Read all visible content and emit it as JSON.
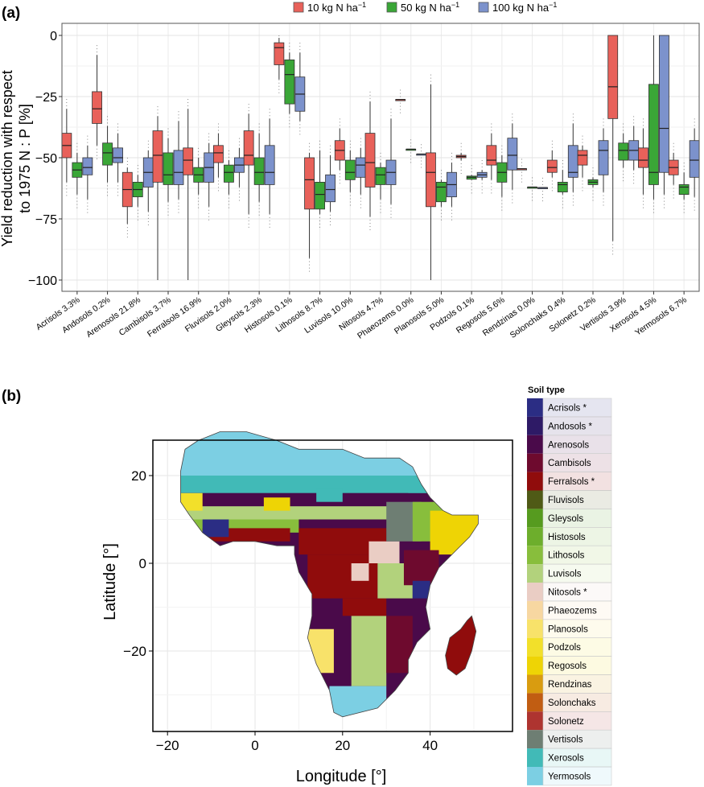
{
  "panel_a": {
    "tag": "(a)",
    "legend": [
      {
        "label": "10 kg N ha",
        "sup": "−1",
        "color": "#E8615A"
      },
      {
        "label": "50 kg N ha",
        "sup": "−1",
        "color": "#3AA637"
      },
      {
        "label": "100 kg N ha",
        "sup": "−1",
        "color": "#7C92CC"
      }
    ],
    "ylabel_line1": "Yield reduction with respect",
    "ylabel_line2": "to 1975 N : P [%]"
  },
  "panel_b": {
    "tag": "(b)",
    "legend_title": "Soil type",
    "soil_types": [
      {
        "label": "Acrisols *",
        "color": "#2B2D84"
      },
      {
        "label": "Andosols *",
        "color": "#2E1A66"
      },
      {
        "label": "Arenosols",
        "color": "#4A0A4A"
      },
      {
        "label": "Cambisols",
        "color": "#6E0A2E"
      },
      {
        "label": "Ferralsols *",
        "color": "#900C0C"
      },
      {
        "label": "Fluvisols",
        "color": "#4F5A16"
      },
      {
        "label": "Gleysols",
        "color": "#569B1F"
      },
      {
        "label": "Histosols",
        "color": "#6DAE2C"
      },
      {
        "label": "Lithosols",
        "color": "#88BE3C"
      },
      {
        "label": "Luvisols",
        "color": "#B2D27C"
      },
      {
        "label": "Nitosols *",
        "color": "#EACDC4"
      },
      {
        "label": "Phaeozems",
        "color": "#F7D7A1"
      },
      {
        "label": "Planosols",
        "color": "#F8E26A"
      },
      {
        "label": "Podzols",
        "color": "#F2E02A"
      },
      {
        "label": "Regosols",
        "color": "#EED405"
      },
      {
        "label": "Rendzinas",
        "color": "#D99C10"
      },
      {
        "label": "Solonchaks",
        "color": "#C15D12"
      },
      {
        "label": "Solonetz",
        "color": "#AE3430"
      },
      {
        "label": "Vertisols",
        "color": "#6E7E73"
      },
      {
        "label": "Xerosols",
        "color": "#41BAB7"
      },
      {
        "label": "Yermosols",
        "color": "#7CCFE3"
      }
    ],
    "map_colors": {
      "ocean": "#ffffff",
      "frame": "#000000"
    }
  },
  "chart_data": [
    {
      "type": "box",
      "title": "",
      "xlabel": "",
      "ylabel": "Yield reduction with respect to 1975 N : P [%]",
      "ylim": [
        -100,
        0
      ],
      "yticks": [
        0,
        -25,
        -50,
        -75,
        -100
      ],
      "ytick_labels": [
        "0",
        "−25",
        "−50",
        "−75",
        "−100"
      ],
      "series_names": [
        "10 kg N ha−1",
        "50 kg N ha−1",
        "100 kg N ha−1"
      ],
      "categories": [
        "Acrisols 3.3%",
        "Andosols 0.2%",
        "Arenosols 21.8%",
        "Cambisols 3.7%",
        "Ferralsols 16.9%",
        "Fluvisols 2.0%",
        "Gleysols 2.3%",
        "Histosols 0.1%",
        "Lithosols 8.7%",
        "Luvisols 10.0%",
        "Nitosols 4.7%",
        "Phaeozems 0.0%",
        "Planosols 5.0%",
        "Podzols 0.1%",
        "Regosols 5.6%",
        "Rendzinas 0.0%",
        "Solonchaks 0.4%",
        "Solonetz 0.2%",
        "Vertisols 3.9%",
        "Xerosols 4.5%",
        "Yermosols 6.7%"
      ],
      "boxes": [
        [
          [
            -30,
            -40,
            -45,
            -50,
            -60
          ],
          [
            -48,
            -52,
            -55,
            -58,
            -65
          ],
          [
            -45,
            -50,
            -54,
            -57,
            -67
          ]
        ],
        [
          [
            -8,
            -23,
            -30,
            -36,
            -45
          ],
          [
            -37,
            -44,
            -48,
            -53,
            -60
          ],
          [
            -40,
            -46,
            -50,
            -52,
            -60
          ]
        ],
        [
          [
            -54,
            -56,
            -63,
            -70,
            -77
          ],
          [
            -57,
            -60,
            -63,
            -66,
            -70
          ],
          [
            -47,
            -50,
            -56,
            -62,
            -72
          ]
        ],
        [
          [
            -33,
            -39,
            -49,
            -60,
            -100
          ],
          [
            -42,
            -48,
            -57,
            -61,
            -68
          ],
          [
            -35,
            -47,
            -56,
            -61,
            -67
          ]
        ],
        [
          [
            -30,
            -46,
            -51,
            -57,
            -100
          ],
          [
            -50,
            -54,
            -57,
            -60,
            -65
          ],
          [
            -44,
            -48,
            -54,
            -60,
            -70
          ]
        ],
        [
          [
            -40,
            -45,
            -48,
            -52,
            -58
          ],
          [
            -51,
            -53,
            -56,
            -60,
            -65
          ],
          [
            -46,
            -50,
            -53,
            -56,
            -62
          ]
        ],
        [
          [
            -32,
            -39,
            -49,
            -53,
            -73
          ],
          [
            -40,
            -50,
            -56,
            -61,
            -68
          ],
          [
            -34,
            -45,
            -56,
            -61,
            -73
          ]
        ],
        [
          [
            -1,
            -3,
            -5,
            -12,
            -18
          ],
          [
            -7,
            -10,
            -16,
            -28,
            -32
          ],
          [
            -7,
            -17,
            -24,
            -31,
            -35
          ]
        ],
        [
          [
            -48,
            -50,
            -59,
            -71,
            -91
          ],
          [
            -47,
            -60,
            -65,
            -71,
            -73
          ],
          [
            -49,
            -57,
            -63,
            -68,
            -72
          ]
        ],
        [
          [
            -38,
            -43,
            -47,
            -51,
            -55
          ],
          [
            -47,
            -51,
            -56,
            -59,
            -64
          ],
          [
            -46,
            -50,
            -53,
            -58,
            -65
          ]
        ],
        [
          [
            -27,
            -40,
            -52,
            -62,
            -74
          ],
          [
            -52,
            -54,
            -57,
            -61,
            -67
          ],
          [
            -34,
            -51,
            -56,
            -61,
            -69
          ]
        ],
        [
          [
            -26.2,
            -26.2,
            -26.2,
            -26.2,
            -26.2
          ],
          [
            -46.5,
            -46.5,
            -46.5,
            -46.5,
            -46.5
          ],
          [
            -48.5,
            -48.5,
            -48.5,
            -48.5,
            -48.5
          ]
        ],
        [
          [
            -20,
            -48,
            -56,
            -70,
            -100
          ],
          [
            -59,
            -60,
            -62,
            -68,
            -70
          ],
          [
            -52,
            -56,
            -61,
            -66,
            -70
          ]
        ],
        [
          [
            -48,
            -49,
            -49.5,
            -50,
            -51
          ],
          [
            -57,
            -57.5,
            -58,
            -58.8,
            -59
          ],
          [
            -55,
            -56,
            -57,
            -58,
            -59
          ]
        ],
        [
          [
            -40,
            -45,
            -51,
            -53,
            -59
          ],
          [
            -49,
            -52,
            -56,
            -60,
            -66
          ],
          [
            -36,
            -42,
            -49,
            -55,
            -63
          ]
        ],
        [
          [
            -54.5,
            -54.5,
            -54.5,
            -54.5,
            -54.5
          ],
          [
            -62,
            -62,
            -62,
            -62,
            -62
          ],
          [
            -62.2,
            -62.2,
            -62.2,
            -62.2,
            -62.2
          ]
        ],
        [
          [
            -47,
            -51,
            -54,
            -56,
            -58
          ],
          [
            -55,
            -60,
            -61,
            -64,
            -65
          ],
          [
            -36,
            -45,
            -56,
            -58,
            -64
          ]
        ],
        [
          [
            -45,
            -47,
            -49,
            -53,
            -58
          ],
          [
            -58,
            -59,
            -60,
            -61,
            -62
          ],
          [
            -38,
            -43,
            -47,
            -57,
            -64
          ]
        ],
        [
          [
            0,
            0,
            -21,
            -34,
            -84
          ],
          [
            -40,
            -44,
            -47,
            -51,
            -54
          ],
          [
            -37,
            -43,
            -47,
            -51,
            -55
          ]
        ],
        [
          [
            -38,
            -46,
            -51,
            -54,
            -65
          ],
          [
            0,
            -20,
            -56,
            -61,
            -67
          ],
          [
            0,
            0,
            -38,
            -56,
            -65
          ]
        ],
        [
          [
            -48,
            -51,
            -54,
            -57,
            -61
          ],
          [
            -56,
            -61,
            -62,
            -65,
            -67
          ],
          [
            -38,
            -43,
            -51,
            -58,
            -66
          ]
        ]
      ]
    },
    {
      "type": "heatmap",
      "title": "",
      "xlabel": "Longitude [°]",
      "ylabel": "Latitude [°]",
      "xlim": [
        -25,
        55
      ],
      "ylim": [
        -38,
        28
      ],
      "xticks": [
        -20,
        0,
        20,
        40
      ],
      "xtick_labels": [
        "−20",
        "0",
        "20",
        "40"
      ],
      "yticks": [
        20,
        0,
        -20
      ],
      "ytick_labels": [
        "20",
        "0",
        "−20"
      ],
      "grid": true
    }
  ]
}
